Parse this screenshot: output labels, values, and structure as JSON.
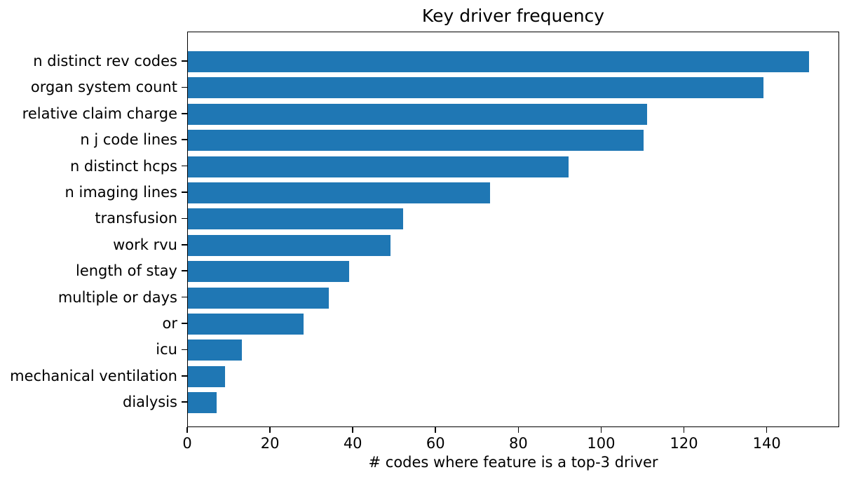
{
  "chart_data": {
    "type": "bar",
    "orientation": "horizontal",
    "title": "Key driver frequency",
    "xlabel": "# codes where feature is a top-3 driver",
    "ylabel": "",
    "categories": [
      "n distinct rev codes",
      "organ system count",
      "relative claim charge",
      "n j code lines",
      "n distinct hcps",
      "n imaging lines",
      "transfusion",
      "work rvu",
      "length of stay",
      "multiple or days",
      "or",
      "icu",
      "mechanical ventilation",
      "dialysis"
    ],
    "values": [
      150,
      139,
      111,
      110,
      92,
      73,
      52,
      49,
      39,
      34,
      28,
      13,
      9,
      7
    ],
    "xlim": [
      0,
      157.5
    ],
    "xticks": [
      0,
      20,
      40,
      60,
      80,
      100,
      120,
      140
    ],
    "bar_color": "#1f77b4",
    "text_color": "#000000",
    "grid": false
  }
}
